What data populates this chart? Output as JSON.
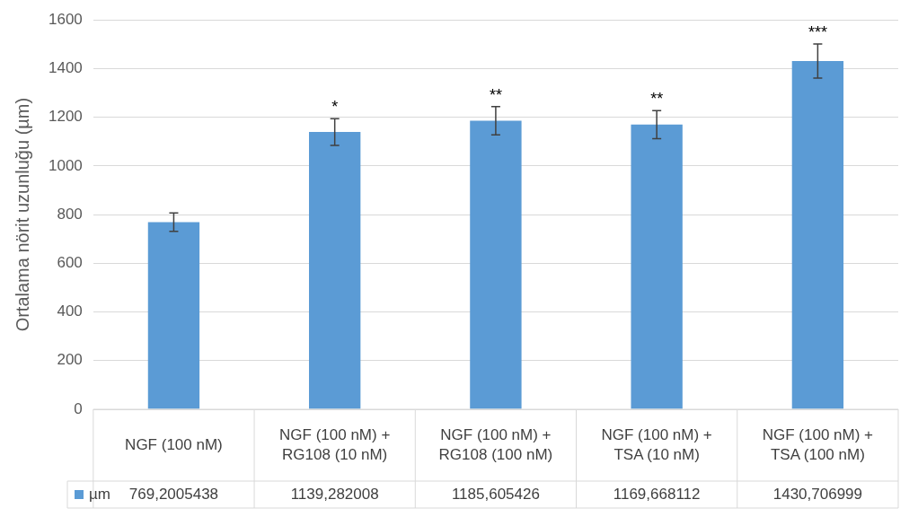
{
  "chart_data": {
    "type": "bar",
    "ylabel": "Ortalama nörit uzunluğu (µm)",
    "categories": [
      "NGF (100 nM)",
      "NGF (100 nM) + RG108 (10 nM)",
      "NGF (100 nM) + RG108 (100 nM)",
      "NGF (100 nM) + TSA (10 nM)",
      "NGF (100 nM) + TSA (100 nM)"
    ],
    "series": [
      {
        "name": "µm",
        "color": "#5b9bd5",
        "values": [
          769.2005438,
          1139.282008,
          1185.605426,
          1169.668112,
          1430.706999
        ],
        "errors": [
          38,
          55,
          58,
          58,
          70
        ],
        "value_labels": [
          "769,2005438",
          "1139,282008",
          "1185,605426",
          "1169,668112",
          "1430,706999"
        ]
      }
    ],
    "ylim": [
      0,
      1600
    ],
    "yticks": [
      0,
      200,
      400,
      600,
      800,
      1000,
      1200,
      1400,
      1600
    ],
    "grid": "y",
    "annotations": [
      {
        "text": "*",
        "x": "NGF (100 nM) + RG108 (10 nM)",
        "y": 1194
      },
      {
        "text": "**",
        "x": "NGF (100 nM) + RG108 (100 nM)",
        "y": 1243
      },
      {
        "text": "**",
        "x": "NGF (100 nM) + TSA (10 nM)",
        "y": 1227
      },
      {
        "text": "***",
        "x": "NGF (100 nM) + TSA (100 nM)",
        "y": 1500
      }
    ]
  }
}
